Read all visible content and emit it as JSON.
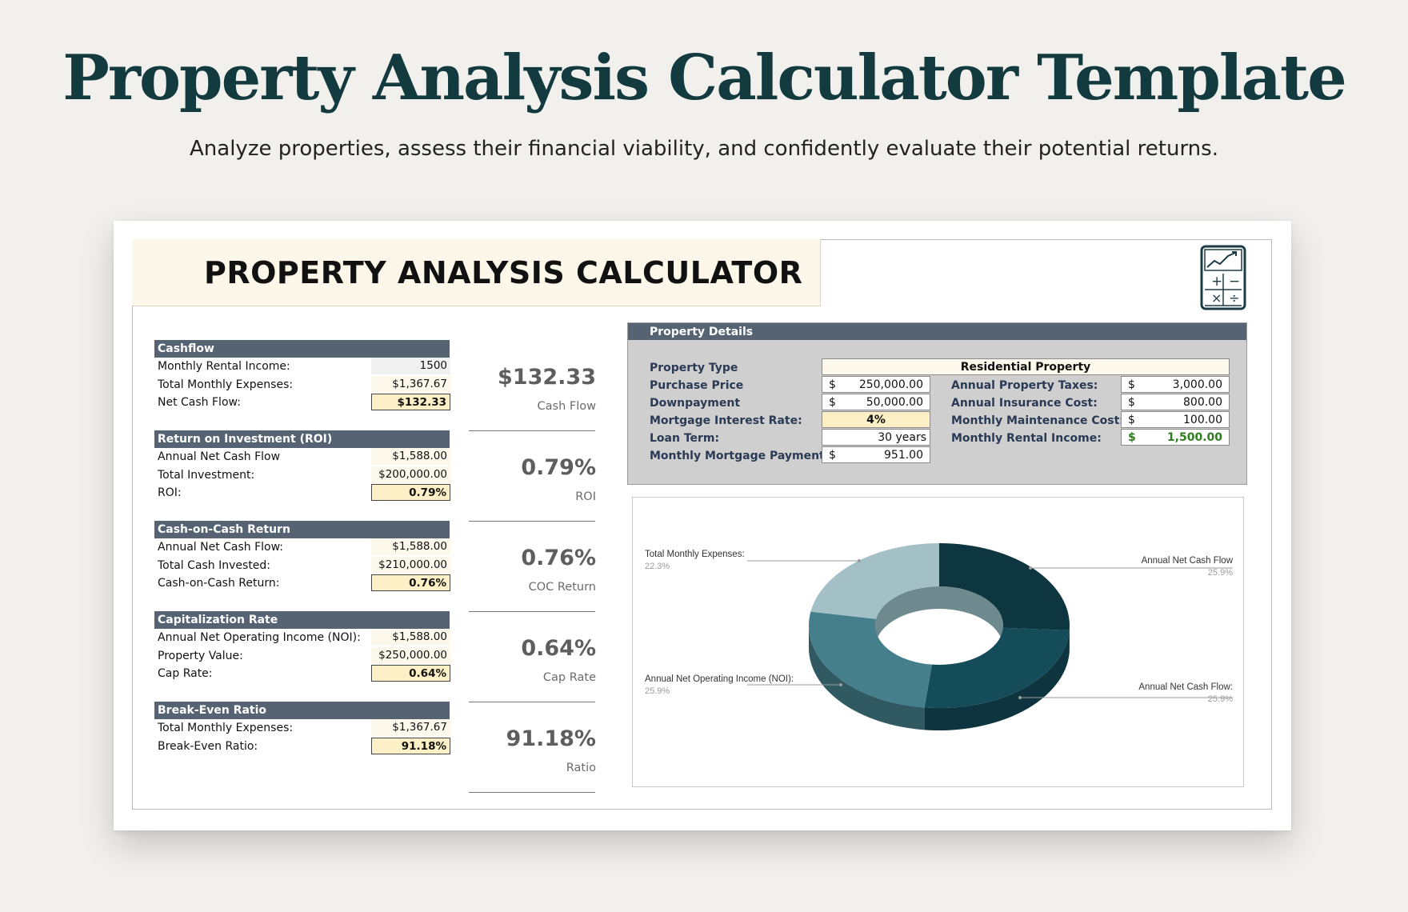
{
  "page": {
    "title": "Property Analysis Calculator Template",
    "subtitle": "Analyze properties, assess their financial viability, and confidently evaluate their potential returns."
  },
  "sheet": {
    "banner_title": "PROPERTY ANALYSIS CALCULATOR",
    "icon": "calculator-chart-icon"
  },
  "blocks": [
    {
      "head": "Cashflow",
      "rows": [
        {
          "label": "Monthly Rental Income:",
          "value": "1500"
        },
        {
          "label": "Total Monthly Expenses:",
          "value": "$1,367.67"
        },
        {
          "label": "Net Cash Flow:",
          "value": "$132.33"
        }
      ],
      "summary_value": "$132.33",
      "summary_caption": "Cash Flow"
    },
    {
      "head": "Return on Investment (ROI)",
      "rows": [
        {
          "label": "Annual Net Cash Flow",
          "value": "$1,588.00"
        },
        {
          "label": "Total Investment:",
          "value": "$200,000.00"
        },
        {
          "label": "ROI:",
          "value": "0.79%"
        }
      ],
      "summary_value": "0.79%",
      "summary_caption": "ROI"
    },
    {
      "head": "Cash-on-Cash Return",
      "rows": [
        {
          "label": "Annual Net Cash Flow:",
          "value": "$1,588.00"
        },
        {
          "label": "Total Cash Invested:",
          "value": "$210,000.00"
        },
        {
          "label": "Cash-on-Cash Return:",
          "value": "0.76%"
        }
      ],
      "summary_value": "0.76%",
      "summary_caption": "COC Return"
    },
    {
      "head": "Capitalization Rate",
      "rows": [
        {
          "label": "Annual Net Operating Income (NOI):",
          "value": "$1,588.00"
        },
        {
          "label": "Property Value:",
          "value": "$250,000.00"
        },
        {
          "label": "Cap Rate:",
          "value": "0.64%"
        }
      ],
      "summary_value": "0.64%",
      "summary_caption": "Cap Rate"
    },
    {
      "head": "Break-Even Ratio",
      "rows": [
        {
          "label": "Total Monthly Expenses:",
          "value": "$1,367.67"
        },
        {
          "label": "Break-Even Ratio:",
          "value": "91.18%"
        }
      ],
      "summary_value": "91.18%",
      "summary_caption": "Ratio"
    }
  ],
  "property_details": {
    "head": "Property Details",
    "property_type_label": "Property Type",
    "property_type_value": "Residential Property",
    "left": [
      {
        "label": "Purchase Price",
        "currency": "$",
        "value": "250,000.00"
      },
      {
        "label": "Downpayment",
        "currency": "$",
        "value": "50,000.00"
      },
      {
        "label": "Mortgage Interest Rate:",
        "currency": "",
        "value": "4%"
      },
      {
        "label": "Loan Term:",
        "currency": "",
        "value": "30 years"
      },
      {
        "label": "Monthly Mortgage Payment:",
        "currency": "$",
        "value": "951.00"
      }
    ],
    "right": [
      {
        "label": "Annual Property Taxes:",
        "currency": "$",
        "value": "3,000.00"
      },
      {
        "label": "Annual Insurance Cost:",
        "currency": "$",
        "value": "800.00"
      },
      {
        "label": "Monthly Maintenance Cost:",
        "currency": "$",
        "value": "100.00"
      },
      {
        "label": "Monthly Rental Income:",
        "currency": "$",
        "value": "1,500.00"
      }
    ],
    "accent_green": "#2e7d1e"
  },
  "chart_data": {
    "type": "pie",
    "style": "3d-donut",
    "slices": [
      {
        "label": "Annual Net Cash Flow",
        "percent": "25.9%",
        "value": 25.9,
        "color": "#0d3640"
      },
      {
        "label": "Annual Net Cash Flow:",
        "percent": "25.9%",
        "value": 25.9,
        "color": "#144c5a"
      },
      {
        "label": "Annual Net Operating Income (NOI):",
        "percent": "25.9%",
        "value": 25.9,
        "color": "#457f8c"
      },
      {
        "label": "Total Monthly Expenses:",
        "percent": "22.3%",
        "value": 22.3,
        "color": "#a2c0c6"
      }
    ]
  }
}
